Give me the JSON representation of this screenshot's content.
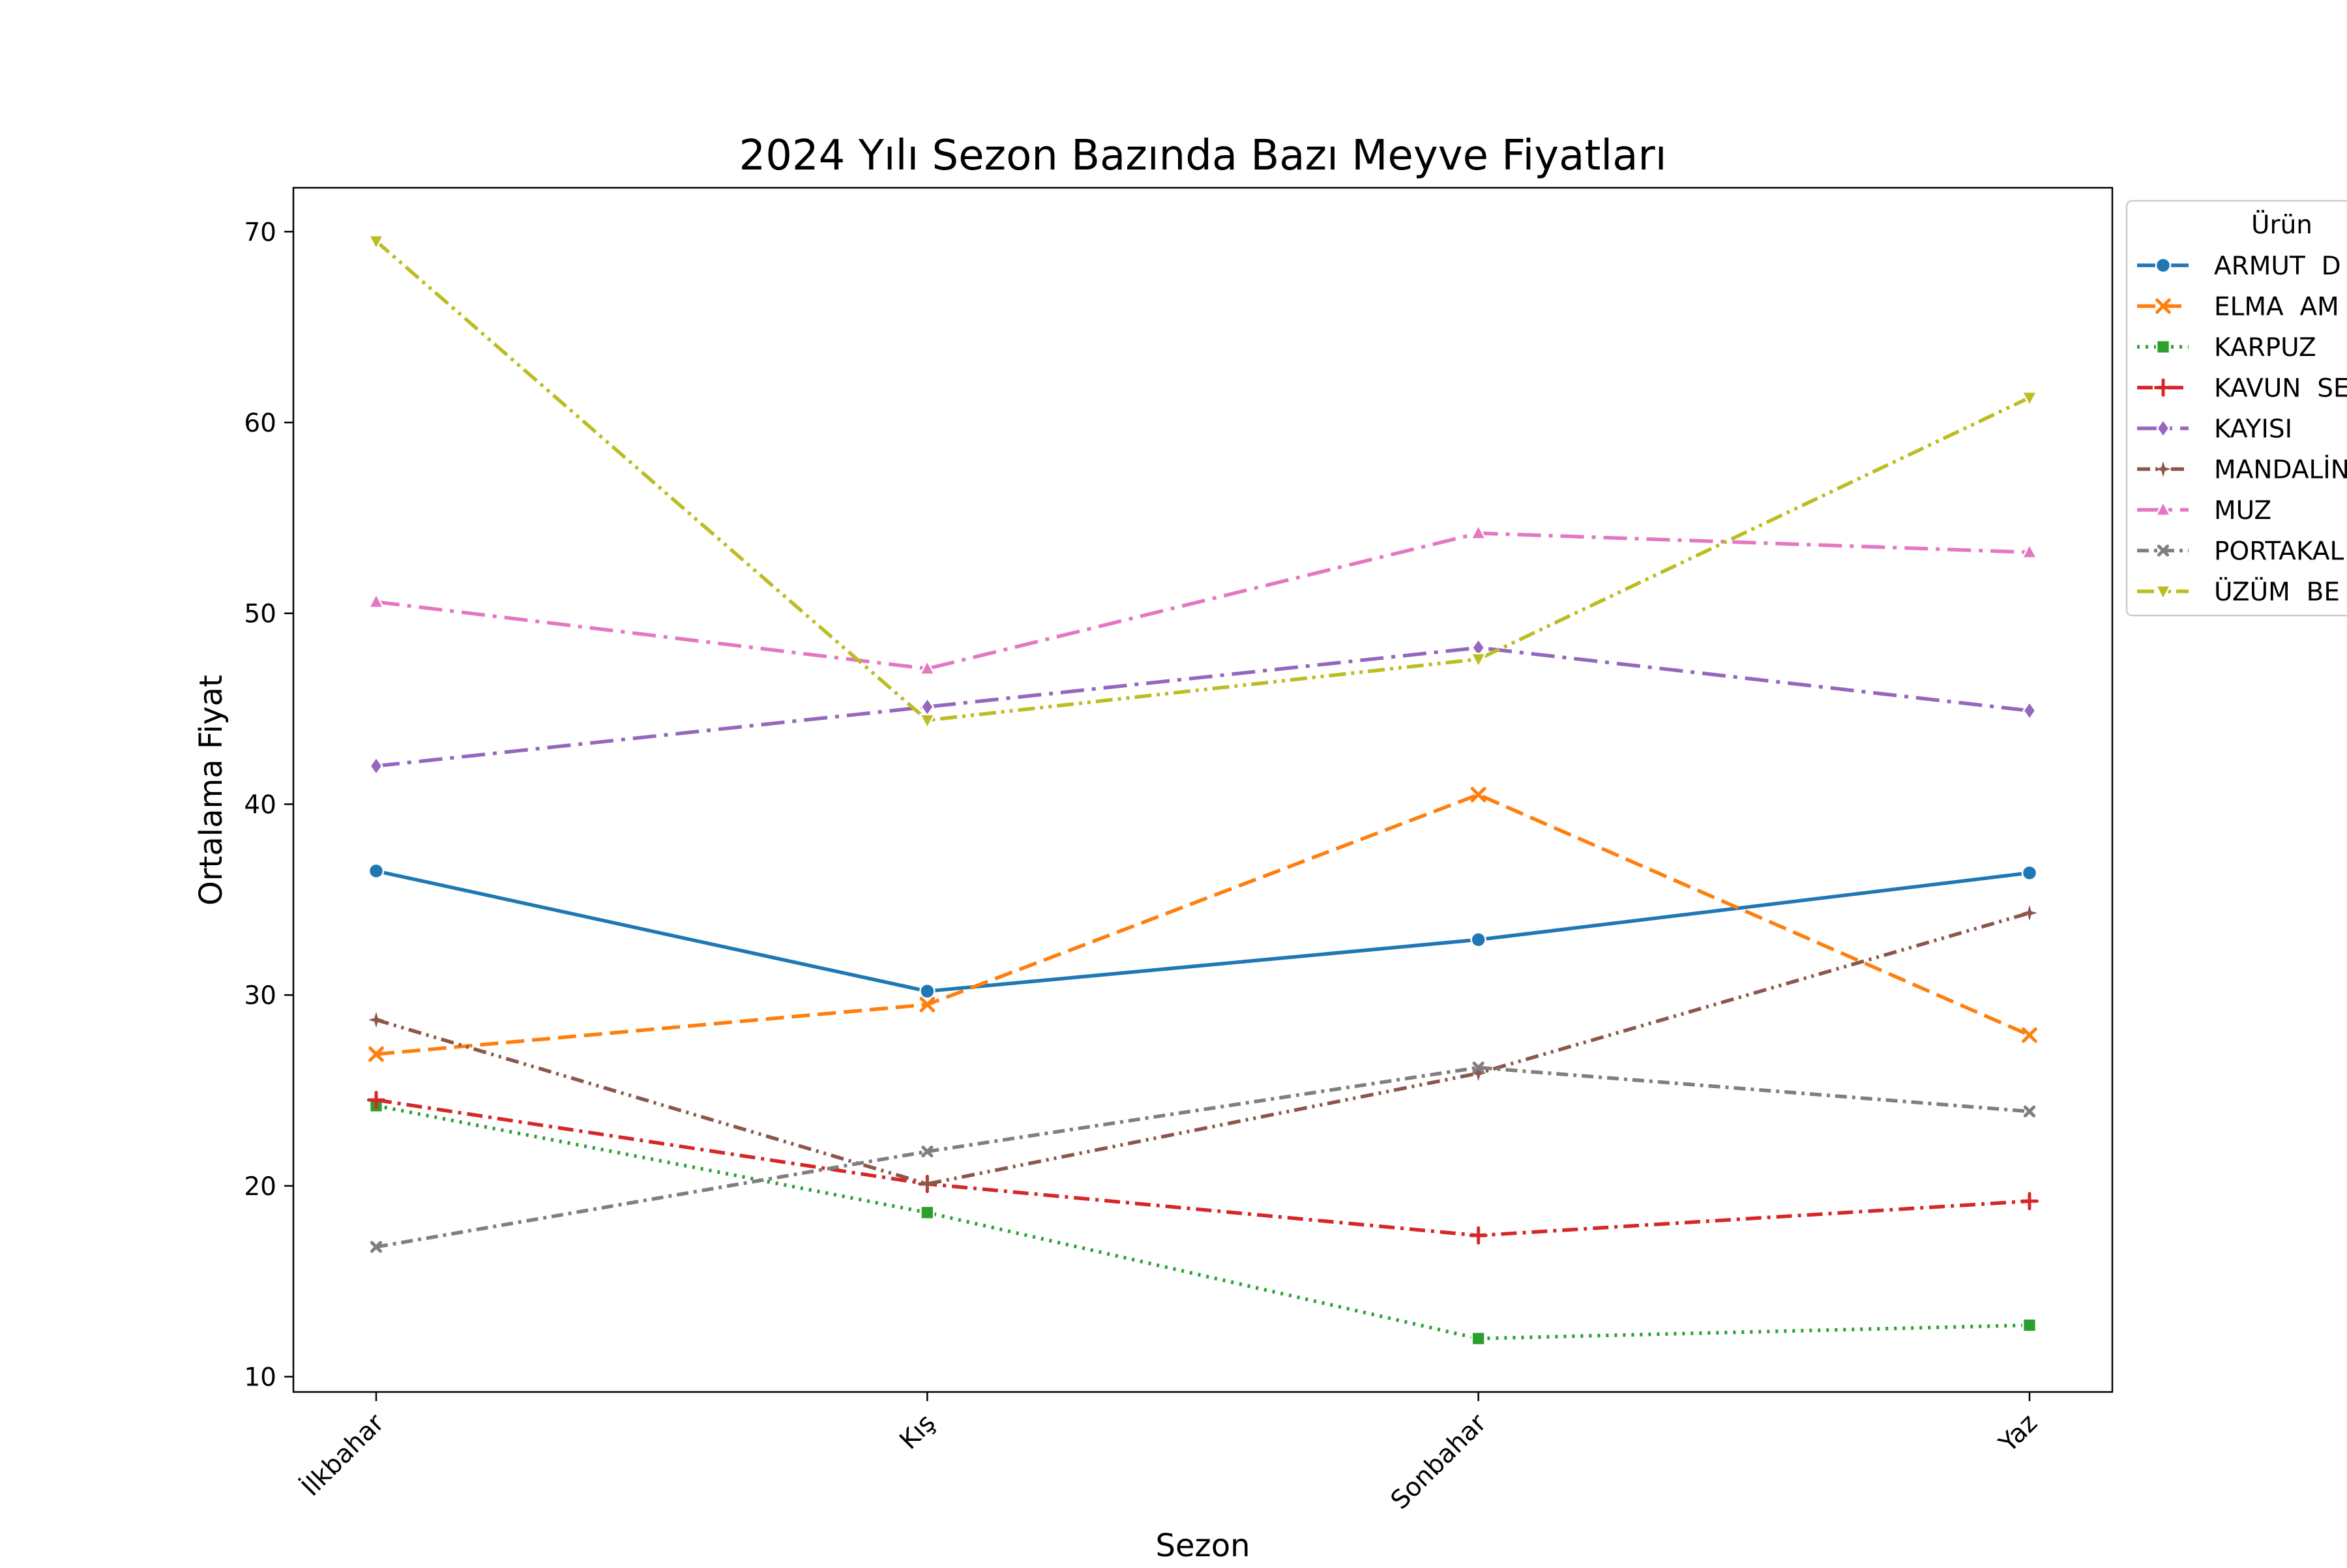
{
  "chart_data": {
    "type": "line",
    "title": "2024 Yılı Sezon Bazında Bazı Meyve Fiyatları",
    "xlabel": "Sezon",
    "ylabel": "Ortalama Fiyat",
    "categories": [
      "İlkbahar",
      "Kış",
      "Sonbahar",
      "Yaz"
    ],
    "ylim": [
      9.2,
      72.3
    ],
    "yticks": [
      10,
      20,
      30,
      40,
      50,
      60,
      70
    ],
    "grid": false,
    "legend": {
      "title": "Ürün",
      "placement": "outside-right-top"
    },
    "series": [
      {
        "name": "ARMUT  D",
        "color": "#1f77b4",
        "dash": "solid",
        "marker": "circle",
        "values": [
          36.5,
          30.2,
          32.9,
          36.4
        ]
      },
      {
        "name": "ELMA  AM",
        "color": "#ff7f0e",
        "dash": "dashed",
        "marker": "x",
        "values": [
          26.9,
          29.5,
          40.5,
          27.9
        ]
      },
      {
        "name": "KARPUZ",
        "color": "#2ca02c",
        "dash": "dotted",
        "marker": "square",
        "values": [
          24.2,
          18.6,
          12.0,
          12.7
        ]
      },
      {
        "name": "KAVUN  SE",
        "color": "#d62728",
        "dash": "dashdot",
        "marker": "plus",
        "values": [
          24.5,
          20.1,
          17.4,
          19.2
        ]
      },
      {
        "name": "KAYISI",
        "color": "#9467bd",
        "dash": "longdashdot",
        "marker": "diamond",
        "values": [
          42.0,
          45.1,
          48.2,
          44.9
        ]
      },
      {
        "name": "MANDALİN",
        "color": "#8c564b",
        "dash": "dashdotdot",
        "marker": "star",
        "values": [
          28.7,
          20.1,
          25.9,
          34.3
        ]
      },
      {
        "name": "MUZ",
        "color": "#e377c2",
        "dash": "longdashdot",
        "marker": "triangle-up",
        "values": [
          50.6,
          47.1,
          54.2,
          53.2
        ]
      },
      {
        "name": "PORTAKAL",
        "color": "#7f7f7f",
        "dash": "dashdot2",
        "marker": "x-small",
        "values": [
          16.8,
          21.8,
          26.2,
          23.9
        ]
      },
      {
        "name": "ÜZÜM  BE",
        "color": "#bcbd22",
        "dash": "dashdotdot2",
        "marker": "triangle-down",
        "values": [
          69.5,
          44.4,
          47.6,
          61.3
        ]
      }
    ]
  }
}
